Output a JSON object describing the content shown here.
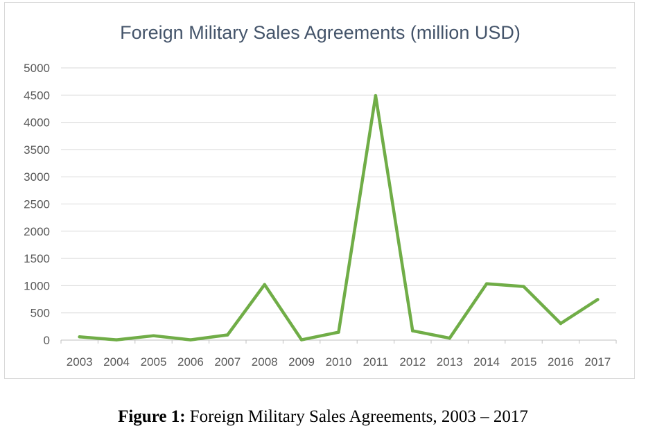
{
  "chart_data": {
    "type": "line",
    "title": "Foreign Military Sales Agreements (million USD)",
    "categories": [
      "2003",
      "2004",
      "2005",
      "2006",
      "2007",
      "2008",
      "2009",
      "2010",
      "2011",
      "2012",
      "2013",
      "2014",
      "2015",
      "2016",
      "2017"
    ],
    "series": [
      {
        "values": [
          60,
          5,
          80,
          5,
          95,
          1020,
          5,
          145,
          4490,
          170,
          35,
          1035,
          985,
          305,
          745
        ]
      }
    ],
    "ylim": [
      0,
      5000
    ],
    "yticks": [
      "0",
      "500",
      "1000",
      "1500",
      "2000",
      "2500",
      "3000",
      "3500",
      "4000",
      "4500",
      "5000"
    ],
    "grid": true,
    "colors": {
      "line": "#70ad47",
      "grid": "#d9d9d9",
      "axis": "#bfbfbf",
      "title": "#44546a",
      "ticks": "#595959"
    }
  },
  "caption": {
    "label": "Figure 1:",
    "text": " Foreign Military Sales Agreements, 2003 – 2017"
  }
}
